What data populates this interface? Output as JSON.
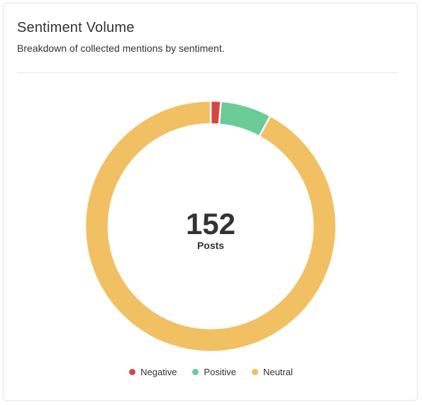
{
  "card": {
    "title": "Sentiment Volume",
    "subtitle": "Breakdown of collected mentions by sentiment."
  },
  "chart_data": {
    "type": "pie",
    "variant": "donut",
    "title": "Sentiment Volume",
    "subtitle": "Breakdown of collected mentions by sentiment.",
    "center_value": "152",
    "center_label": "Posts",
    "total": 152,
    "categories": [
      "Negative",
      "Positive",
      "Neutral"
    ],
    "values": [
      2,
      10,
      140
    ],
    "colors": [
      "#d64545",
      "#6bcb97",
      "#f0c063"
    ],
    "legend_position": "bottom-center"
  }
}
